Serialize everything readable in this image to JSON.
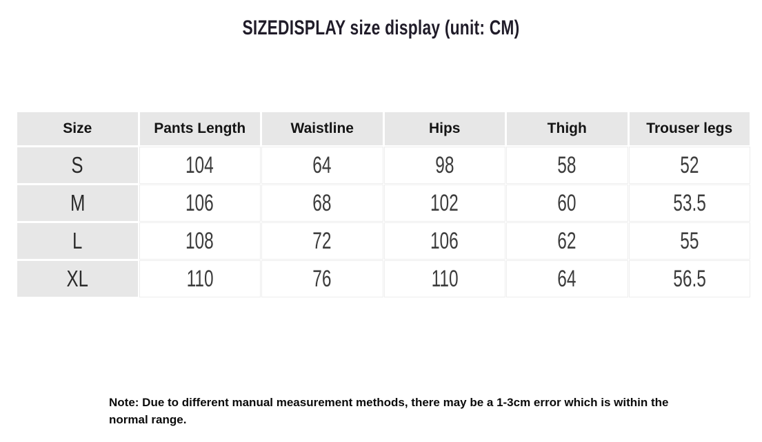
{
  "title": "SIZEDISPLAY size display (unit: CM)",
  "table": {
    "headers": [
      "Size",
      "Pants Length",
      "Waistline",
      "Hips",
      "Thigh",
      "Trouser legs"
    ],
    "rows": [
      {
        "size": "S",
        "values": [
          "104",
          "64",
          "98",
          "58",
          "52"
        ]
      },
      {
        "size": "M",
        "values": [
          "106",
          "68",
          "102",
          "60",
          "53.5"
        ]
      },
      {
        "size": "L",
        "values": [
          "108",
          "72",
          "106",
          "62",
          "55"
        ]
      },
      {
        "size": "XL",
        "values": [
          "110",
          "76",
          "110",
          "64",
          "56.5"
        ]
      }
    ]
  },
  "note": "Note: Due to different manual measurement methods, there may be a 1-3cm error which is within the normal range.",
  "colors": {
    "page_bg": "#ffffff",
    "header_bg": "#e7e7e7",
    "title_text": "#201c29",
    "header_text": "#141414",
    "number_text": "#3c3c3c",
    "grid_line": "#ededed",
    "note_text": "#0b0b0b"
  },
  "chart_data": {
    "type": "table",
    "title": "SIZEDISPLAY size display (unit: CM)",
    "unit": "CM",
    "columns": [
      "Size",
      "Pants Length",
      "Waistline",
      "Hips",
      "Thigh",
      "Trouser legs"
    ],
    "rows": [
      [
        "S",
        104,
        64,
        98,
        58,
        52
      ],
      [
        "M",
        106,
        68,
        102,
        60,
        53.5
      ],
      [
        "L",
        108,
        72,
        106,
        62,
        55
      ],
      [
        "XL",
        110,
        76,
        110,
        64,
        56.5
      ]
    ],
    "note": "Note: Due to different manual measurement methods, there may be a 1-3cm error which is within the normal range."
  }
}
